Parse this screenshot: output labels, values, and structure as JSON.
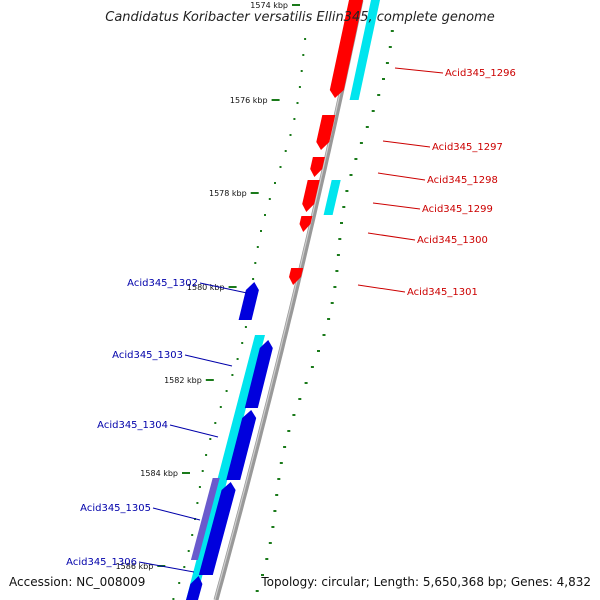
{
  "title": "Candidatus Koribacter versatilis Ellin345, complete genome",
  "accession_text": "Accession: NC_008009",
  "summary_text": "Topology: circular; Length: 5,650,368 bp; Genes: 4,832",
  "colors": {
    "forward_gene": "#ff0000",
    "forward_gene_label": "#cc0000",
    "reverse_gene": "#0000dd",
    "reverse_gene_label": "#0000aa",
    "orf_band": "#00e5ee",
    "backbone": "#999999",
    "gc_tick": "#1a7a1a"
  },
  "ticks": [
    {
      "label": "1574 kbp"
    },
    {
      "label": "1576 kbp"
    },
    {
      "label": "1578 kbp"
    },
    {
      "label": "1580 kbp"
    },
    {
      "label": "1582 kbp"
    },
    {
      "label": "1584 kbp"
    },
    {
      "label": "1586 kbp"
    }
  ],
  "forward_genes": [
    {
      "label": "Acid345_1296"
    },
    {
      "label": "Acid345_1297"
    },
    {
      "label": "Acid345_1298"
    },
    {
      "label": "Acid345_1299"
    },
    {
      "label": "Acid345_1300"
    },
    {
      "label": "Acid345_1301"
    }
  ],
  "reverse_genes": [
    {
      "label": "Acid345_1302"
    },
    {
      "label": "Acid345_1303"
    },
    {
      "label": "Acid345_1304"
    },
    {
      "label": "Acid345_1305"
    },
    {
      "label": "Acid345_1306"
    }
  ]
}
